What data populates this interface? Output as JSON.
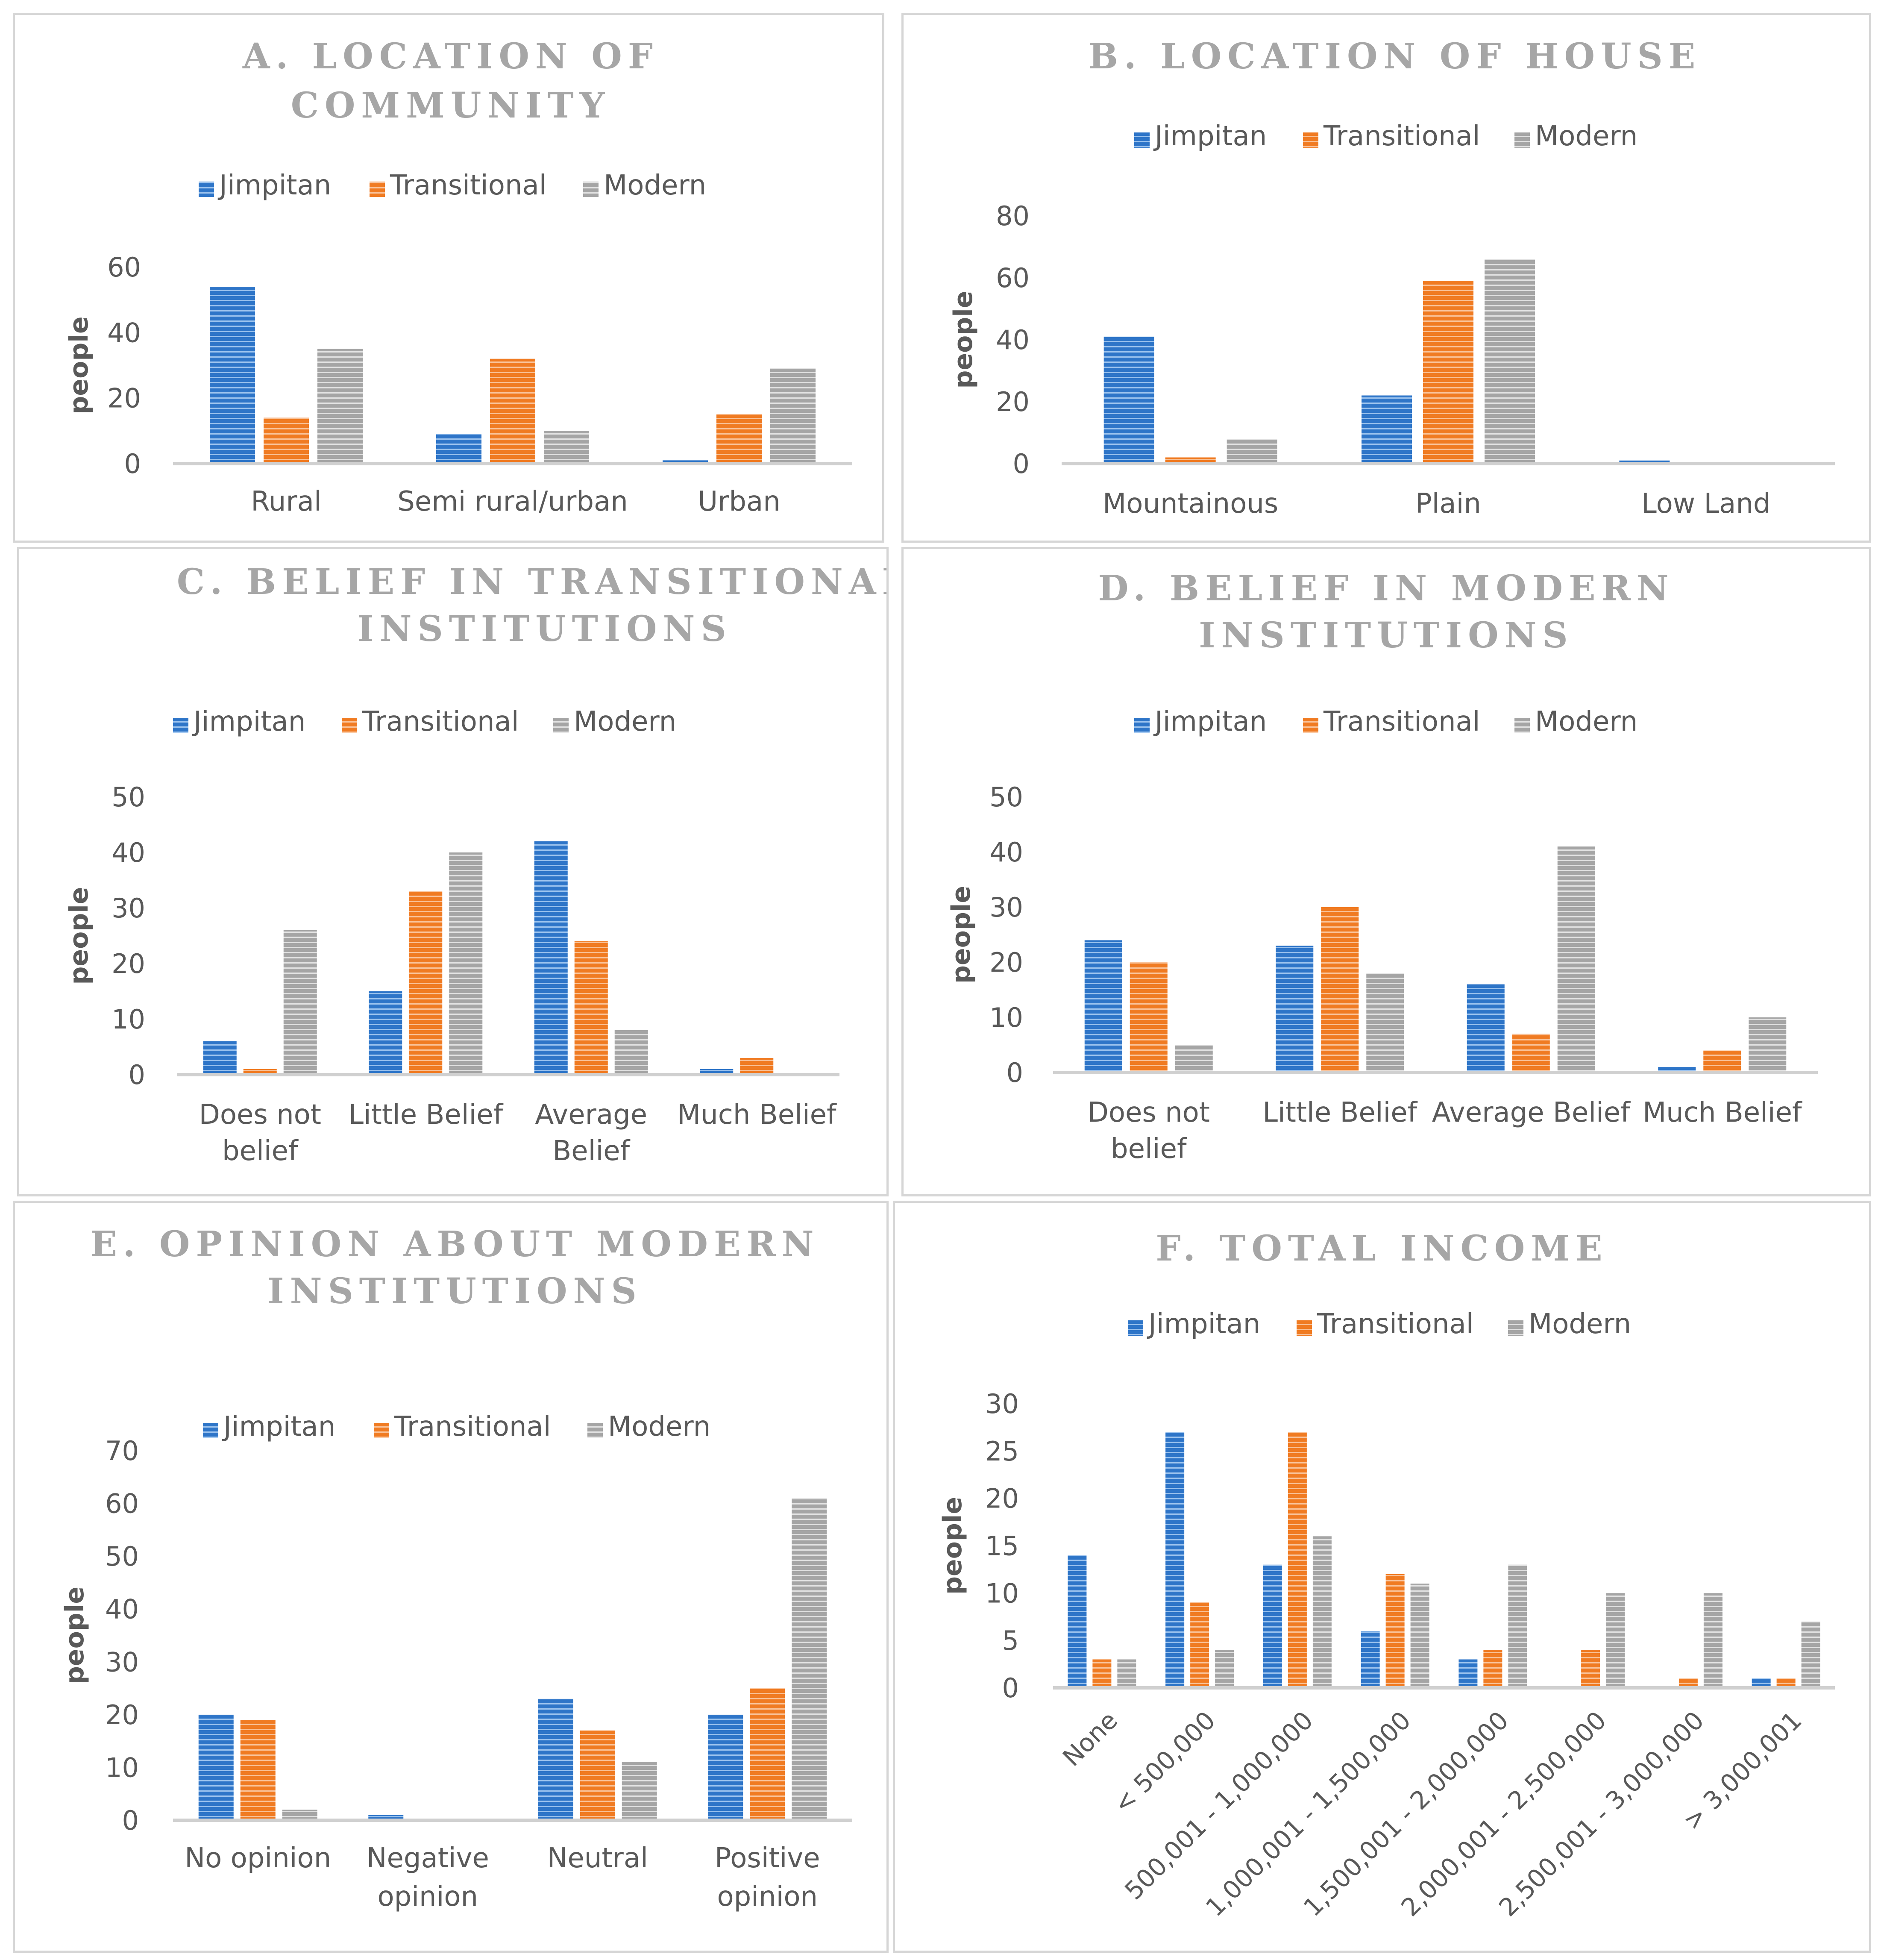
{
  "legend": [
    "Jimpitan",
    "Transitional",
    "Modern"
  ],
  "colors": {
    "Jimpitan": "#2e75c8",
    "Transitional": "#f07b22",
    "Modern": "#a5a5a5",
    "axis": "#d0d0d0",
    "text": "#595959",
    "title": "#a6a6a6"
  },
  "chart_data": [
    {
      "id": "a",
      "type": "bar",
      "title": [
        "A. LOCATION OF",
        "COMMUNITY"
      ],
      "ylabel": "people",
      "ylim": [
        0,
        60
      ],
      "yticks": [
        0,
        20,
        40,
        60
      ],
      "categories": [
        [
          "Rural"
        ],
        [
          "Semi rural/urban"
        ],
        [
          "Urban"
        ]
      ],
      "series": [
        {
          "name": "Jimpitan",
          "values": [
            54,
            9,
            1
          ]
        },
        {
          "name": "Transitional",
          "values": [
            14,
            32,
            15
          ]
        },
        {
          "name": "Modern",
          "values": [
            35,
            10,
            29
          ]
        }
      ]
    },
    {
      "id": "b",
      "type": "bar",
      "title": [
        "B. LOCATION OF HOUSE"
      ],
      "ylabel": "people",
      "ylim": [
        0,
        80
      ],
      "yticks": [
        0,
        20,
        40,
        60,
        80
      ],
      "categories": [
        [
          "Mountainous"
        ],
        [
          "Plain"
        ],
        [
          "Low Land"
        ]
      ],
      "series": [
        {
          "name": "Jimpitan",
          "values": [
            41,
            22,
            1
          ]
        },
        {
          "name": "Transitional",
          "values": [
            2,
            59,
            0
          ]
        },
        {
          "name": "Modern",
          "values": [
            8,
            66,
            0
          ]
        }
      ]
    },
    {
      "id": "c",
      "type": "bar",
      "title": [
        "C. BELIEF IN TRANSITIONAL",
        "INSTITUTIONS"
      ],
      "ylabel": "people",
      "ylim": [
        0,
        50
      ],
      "yticks": [
        0,
        10,
        20,
        30,
        40,
        50
      ],
      "categories": [
        [
          "Does not",
          "belief"
        ],
        [
          "Little Belief"
        ],
        [
          "Average",
          "Belief"
        ],
        [
          "Much Belief"
        ]
      ],
      "series": [
        {
          "name": "Jimpitan",
          "values": [
            6,
            15,
            42,
            1
          ]
        },
        {
          "name": "Transitional",
          "values": [
            1,
            33,
            24,
            3
          ]
        },
        {
          "name": "Modern",
          "values": [
            26,
            40,
            8,
            0
          ]
        }
      ]
    },
    {
      "id": "d",
      "type": "bar",
      "title": [
        "D. BELIEF IN MODERN",
        "INSTITUTIONS"
      ],
      "ylabel": "people",
      "ylim": [
        0,
        50
      ],
      "yticks": [
        0,
        10,
        20,
        30,
        40,
        50
      ],
      "categories": [
        [
          "Does not",
          "belief"
        ],
        [
          "Little Belief"
        ],
        [
          "Average Belief"
        ],
        [
          "Much Belief"
        ]
      ],
      "series": [
        {
          "name": "Jimpitan",
          "values": [
            24,
            23,
            16,
            1
          ]
        },
        {
          "name": "Transitional",
          "values": [
            20,
            30,
            7,
            4
          ]
        },
        {
          "name": "Modern",
          "values": [
            5,
            18,
            41,
            10
          ]
        }
      ]
    },
    {
      "id": "e",
      "type": "bar",
      "title": [
        "E. OPINION ABOUT MODERN",
        "INSTITUTIONS"
      ],
      "ylabel": "people",
      "ylim": [
        0,
        70
      ],
      "yticks": [
        0,
        10,
        20,
        30,
        40,
        50,
        60,
        70
      ],
      "categories": [
        [
          "No opinion"
        ],
        [
          "Negative",
          "opinion"
        ],
        [
          "Neutral"
        ],
        [
          "Positive",
          "opinion"
        ]
      ],
      "series": [
        {
          "name": "Jimpitan",
          "values": [
            20,
            1,
            23,
            20
          ]
        },
        {
          "name": "Transitional",
          "values": [
            19,
            0,
            17,
            25
          ]
        },
        {
          "name": "Modern",
          "values": [
            2,
            0,
            11,
            61
          ]
        }
      ]
    },
    {
      "id": "f",
      "type": "bar",
      "title": [
        "F. TOTAL INCOME"
      ],
      "ylabel": "people",
      "ylim": [
        0,
        30
      ],
      "yticks": [
        0,
        5,
        10,
        15,
        20,
        25,
        30
      ],
      "rotate_labels": true,
      "categories": [
        [
          "None"
        ],
        [
          "< 500,000"
        ],
        [
          "500,001 - 1,000,000"
        ],
        [
          "1,000,001 - 1,500,000"
        ],
        [
          "1,500,001 - 2,000,000"
        ],
        [
          "2,000,001 - 2,500,000"
        ],
        [
          "2,500,001 - 3,000,000"
        ],
        [
          "> 3,000,001"
        ]
      ],
      "series": [
        {
          "name": "Jimpitan",
          "values": [
            14,
            27,
            13,
            6,
            3,
            0,
            0,
            1
          ]
        },
        {
          "name": "Transitional",
          "values": [
            3,
            9,
            27,
            12,
            4,
            4,
            1,
            1
          ]
        },
        {
          "name": "Modern",
          "values": [
            3,
            4,
            16,
            11,
            13,
            10,
            10,
            7
          ]
        }
      ]
    }
  ]
}
